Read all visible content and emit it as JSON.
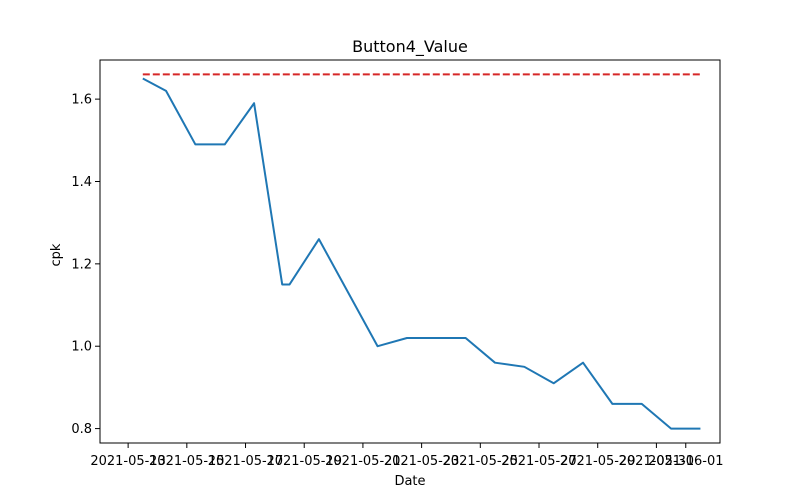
{
  "chart_data": {
    "type": "line",
    "title": "Button4_Value",
    "xlabel": "Date",
    "ylabel": "cpk",
    "x_ticks": [
      "2021-05-13",
      "2021-05-15",
      "2021-05-17",
      "2021-05-19",
      "2021-05-21",
      "2021-05-23",
      "2021-05-25",
      "2021-05-27",
      "2021-05-29",
      "2021-05-31",
      "2021-06-01"
    ],
    "y_ticks": [
      "0.8",
      "1.0",
      "1.2",
      "1.4",
      "1.6"
    ],
    "xlim": [
      "2021-05-12T01:00",
      "2021-06-02T04:00"
    ],
    "ylim": [
      0.765,
      1.695
    ],
    "grid": false,
    "series": [
      {
        "color": "#1f77b4",
        "points": [
          [
            "2021-05-13T12:00",
            1.65
          ],
          [
            "2021-05-14T07:00",
            1.62
          ],
          [
            "2021-05-15T07:00",
            1.49
          ],
          [
            "2021-05-16T07:00",
            1.49
          ],
          [
            "2021-05-17T07:00",
            1.59
          ],
          [
            "2021-05-18T06:00",
            1.15
          ],
          [
            "2021-05-18T12:00",
            1.15
          ],
          [
            "2021-05-19T12:00",
            1.26
          ],
          [
            "2021-05-21T12:00",
            1.0
          ],
          [
            "2021-05-22T12:00",
            1.02
          ],
          [
            "2021-05-24T12:00",
            1.02
          ],
          [
            "2021-05-25T12:00",
            0.96
          ],
          [
            "2021-05-26T12:00",
            0.95
          ],
          [
            "2021-05-27T12:00",
            0.91
          ],
          [
            "2021-05-28T12:00",
            0.96
          ],
          [
            "2021-05-29T12:00",
            0.86
          ],
          [
            "2021-05-30T12:00",
            0.86
          ],
          [
            "2021-05-31T12:00",
            0.8
          ],
          [
            "2021-06-01T12:00",
            0.8
          ]
        ]
      }
    ],
    "reference_line": {
      "value": 1.66,
      "from": "2021-05-13T12:00",
      "to": "2021-06-01T12:00",
      "color": "#d62728",
      "style": "dashed"
    }
  }
}
